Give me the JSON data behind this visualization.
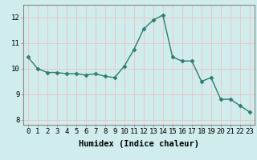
{
  "x": [
    0,
    1,
    2,
    3,
    4,
    5,
    6,
    7,
    8,
    9,
    10,
    11,
    12,
    13,
    14,
    15,
    16,
    17,
    18,
    19,
    20,
    21,
    22,
    23
  ],
  "y": [
    10.45,
    10.0,
    9.85,
    9.85,
    9.8,
    9.8,
    9.75,
    9.8,
    9.7,
    9.65,
    10.1,
    10.75,
    11.55,
    11.9,
    12.1,
    10.45,
    10.3,
    10.3,
    9.5,
    9.65,
    8.8,
    8.8,
    8.55,
    8.3
  ],
  "line_color": "#2e7d6e",
  "marker": "D",
  "marker_size": 2.5,
  "bg_color": "#d0ecec",
  "grid_color": "#e8c8c8",
  "xlabel": "Humidex (Indice chaleur)",
  "xlim": [
    -0.5,
    23.5
  ],
  "ylim": [
    7.8,
    12.5
  ],
  "yticks": [
    8,
    9,
    10,
    11,
    12
  ],
  "xticks": [
    0,
    1,
    2,
    3,
    4,
    5,
    6,
    7,
    8,
    9,
    10,
    11,
    12,
    13,
    14,
    15,
    16,
    17,
    18,
    19,
    20,
    21,
    22,
    23
  ],
  "tick_fontsize": 6.5,
  "label_fontsize": 7.5,
  "spine_color": "#888888"
}
